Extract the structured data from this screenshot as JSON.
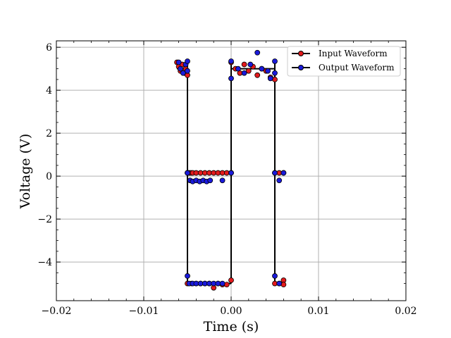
{
  "chart_data": {
    "type": "line",
    "title": "",
    "xlabel": "Time (s)",
    "ylabel": "Voltage (V)",
    "xlim": [
      -0.02,
      0.02
    ],
    "ylim": [
      -5.8,
      6.3
    ],
    "grid": true,
    "legend_position": "top-right",
    "xticks": [
      -0.02,
      -0.01,
      0.0,
      0.01,
      0.02
    ],
    "xtick_labels": [
      "−0.02",
      "−0.01",
      "0.00",
      "0.01",
      "0.02"
    ],
    "yticks": [
      -4,
      -2,
      0,
      2,
      4,
      6
    ],
    "ytick_labels": [
      "−4",
      "−2",
      "0",
      "2",
      "4",
      "6"
    ],
    "series": [
      {
        "name": "Input Waveform",
        "color": "#e31a1c",
        "points": [
          [
            -0.0062,
            5.3
          ],
          [
            -0.006,
            5.1
          ],
          [
            -0.0058,
            4.9
          ],
          [
            -0.0056,
            5.2
          ],
          [
            -0.0054,
            4.8
          ],
          [
            -0.0052,
            5.0
          ],
          [
            -0.005,
            4.7
          ],
          [
            -0.005,
            0.15
          ],
          [
            -0.0048,
            0.15
          ],
          [
            -0.0046,
            0.15
          ],
          [
            -0.0044,
            0.15
          ],
          [
            -0.004,
            0.15
          ],
          [
            -0.0035,
            0.15
          ],
          [
            -0.003,
            0.15
          ],
          [
            -0.0025,
            0.15
          ],
          [
            -0.002,
            0.15
          ],
          [
            -0.0015,
            0.15
          ],
          [
            -0.001,
            0.15
          ],
          [
            -0.0005,
            0.15
          ],
          [
            0.0,
            0.15
          ],
          [
            -0.005,
            -5.0
          ],
          [
            -0.0045,
            -5.0
          ],
          [
            -0.004,
            -5.0
          ],
          [
            -0.0035,
            -5.0
          ],
          [
            -0.003,
            -5.0
          ],
          [
            -0.0025,
            -5.0
          ],
          [
            -0.002,
            -5.2
          ],
          [
            -0.0015,
            -5.0
          ],
          [
            -0.001,
            -5.05
          ],
          [
            -0.0005,
            -5.05
          ],
          [
            0.0,
            -4.85
          ],
          [
            0.0,
            5.3
          ],
          [
            0.0005,
            5.0
          ],
          [
            0.001,
            4.8
          ],
          [
            0.0015,
            5.2
          ],
          [
            0.002,
            4.9
          ],
          [
            0.0025,
            5.1
          ],
          [
            0.003,
            4.7
          ],
          [
            0.0035,
            5.0
          ],
          [
            0.004,
            4.9
          ],
          [
            0.0045,
            4.6
          ],
          [
            0.005,
            4.5
          ],
          [
            0.005,
            0.15
          ],
          [
            0.0055,
            0.15
          ],
          [
            0.006,
            0.15
          ],
          [
            0.005,
            -5.0
          ],
          [
            0.0055,
            -5.0
          ],
          [
            0.006,
            -4.85
          ],
          [
            0.006,
            -5.05
          ]
        ]
      },
      {
        "name": "Output Waveform",
        "color": "#1a1adb",
        "points": [
          [
            -0.006,
            5.3
          ],
          [
            -0.0058,
            5.0
          ],
          [
            -0.0055,
            4.8
          ],
          [
            -0.0052,
            5.2
          ],
          [
            -0.005,
            5.35
          ],
          [
            -0.005,
            4.9
          ],
          [
            -0.005,
            0.15
          ],
          [
            -0.0047,
            -0.2
          ],
          [
            -0.0044,
            -0.25
          ],
          [
            -0.004,
            -0.2
          ],
          [
            -0.0036,
            -0.25
          ],
          [
            -0.0032,
            -0.2
          ],
          [
            -0.0028,
            -0.25
          ],
          [
            -0.0024,
            -0.2
          ],
          [
            -0.001,
            -0.2
          ],
          [
            0.0,
            0.15
          ],
          [
            -0.005,
            -4.65
          ],
          [
            -0.0048,
            -5.0
          ],
          [
            -0.0044,
            -5.0
          ],
          [
            -0.004,
            -5.0
          ],
          [
            -0.0035,
            -5.0
          ],
          [
            -0.003,
            -5.0
          ],
          [
            -0.0025,
            -5.0
          ],
          [
            -0.002,
            -5.0
          ],
          [
            -0.0015,
            -5.0
          ],
          [
            -0.001,
            -5.0
          ],
          [
            0.0,
            4.55
          ],
          [
            0.0,
            5.35
          ],
          [
            0.0008,
            5.0
          ],
          [
            0.0015,
            4.8
          ],
          [
            0.0022,
            5.2
          ],
          [
            0.003,
            5.75
          ],
          [
            0.0035,
            5.0
          ],
          [
            0.0042,
            4.9
          ],
          [
            0.0045,
            4.55
          ],
          [
            0.005,
            5.35
          ],
          [
            0.005,
            4.8
          ],
          [
            0.005,
            0.15
          ],
          [
            0.0055,
            -0.2
          ],
          [
            0.006,
            0.15
          ],
          [
            0.005,
            -4.65
          ],
          [
            0.0055,
            -5.0
          ]
        ]
      }
    ],
    "step_line": {
      "color": "#000000",
      "segments": [
        [
          [
            -0.0062,
            5.0
          ],
          [
            -0.005,
            5.0
          ]
        ],
        [
          [
            -0.005,
            5.3
          ],
          [
            -0.005,
            -5.0
          ]
        ],
        [
          [
            -0.005,
            0.15
          ],
          [
            0.0,
            0.15
          ]
        ],
        [
          [
            -0.005,
            -5.0
          ],
          [
            0.0,
            -5.0
          ]
        ],
        [
          [
            0.0,
            -5.0
          ],
          [
            0.0,
            5.3
          ]
        ],
        [
          [
            0.0,
            5.0
          ],
          [
            0.005,
            5.0
          ]
        ],
        [
          [
            0.005,
            5.3
          ],
          [
            0.005,
            -5.0
          ]
        ],
        [
          [
            0.005,
            0.15
          ],
          [
            0.006,
            0.15
          ]
        ],
        [
          [
            0.005,
            -5.0
          ],
          [
            0.006,
            -5.0
          ]
        ]
      ]
    }
  }
}
